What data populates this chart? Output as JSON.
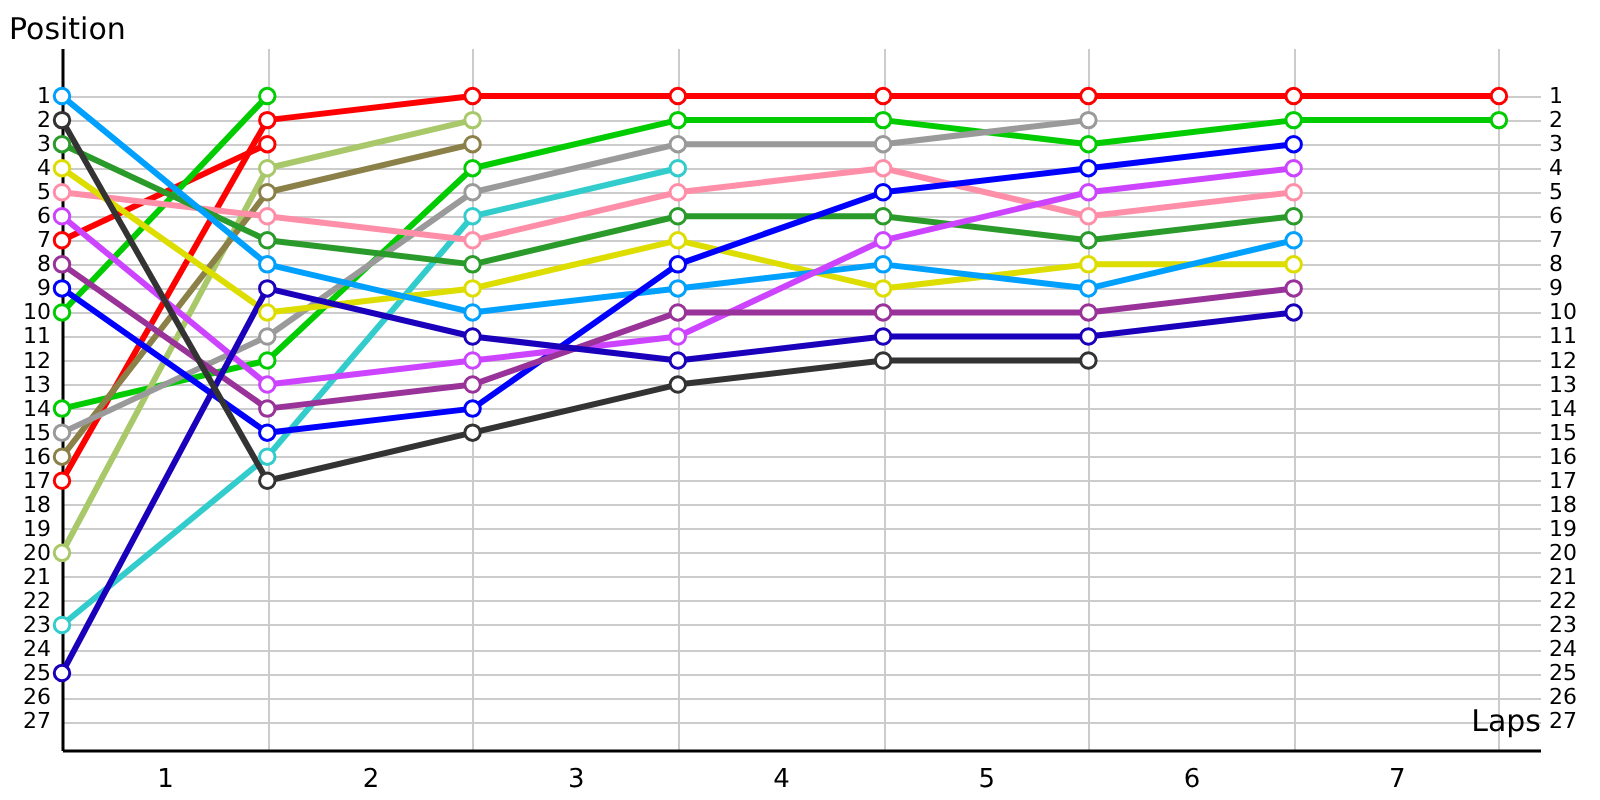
{
  "chart_data": {
    "type": "line",
    "xlabel": "Laps",
    "ylabel": "Position",
    "x": [
      0,
      1,
      2,
      3,
      4,
      5,
      6,
      7
    ],
    "series": [
      {
        "color": "#ff0000",
        "values": [
          17,
          2,
          1,
          1,
          1,
          1,
          1,
          1
        ]
      },
      {
        "color": "#00cc00",
        "values": [
          14,
          12,
          4,
          2,
          2,
          3,
          2,
          2
        ]
      },
      {
        "color": "#ff0000",
        "values": [
          7,
          3,
          null,
          null,
          null,
          null,
          null,
          null
        ]
      },
      {
        "color": "#00cc00",
        "values": [
          10,
          1,
          null,
          null,
          null,
          null,
          null,
          null
        ]
      },
      {
        "color": "#a8c86a",
        "values": [
          20,
          4,
          2,
          null,
          null,
          null,
          null,
          null
        ]
      },
      {
        "color": "#8b8048",
        "values": [
          16,
          5,
          3,
          null,
          null,
          null,
          null,
          null
        ]
      },
      {
        "color": "#9a9a9a",
        "values": [
          15,
          11,
          5,
          3,
          3,
          2,
          null,
          null
        ]
      },
      {
        "color": "#33cccc",
        "values": [
          23,
          16,
          6,
          4,
          null,
          null,
          null,
          null
        ]
      },
      {
        "color": "#ff8fa8",
        "values": [
          5,
          6,
          7,
          5,
          4,
          6,
          5,
          null
        ]
      },
      {
        "color": "#2a9a2a",
        "values": [
          3,
          7,
          8,
          6,
          6,
          7,
          6,
          null
        ]
      },
      {
        "color": "#dddd00",
        "values": [
          4,
          10,
          9,
          7,
          9,
          8,
          8,
          null
        ]
      },
      {
        "color": "#00a0ff",
        "values": [
          1,
          8,
          10,
          9,
          8,
          9,
          7,
          null
        ]
      },
      {
        "color": "#0000ff",
        "values": [
          9,
          15,
          14,
          8,
          5,
          4,
          3,
          null
        ]
      },
      {
        "color": "#cc44ff",
        "values": [
          6,
          13,
          12,
          11,
          7,
          5,
          4,
          null
        ]
      },
      {
        "color": "#993399",
        "values": [
          8,
          14,
          13,
          10,
          10,
          10,
          9,
          null
        ]
      },
      {
        "color": "#1a00bb",
        "values": [
          25,
          9,
          11,
          12,
          11,
          11,
          10,
          null
        ]
      },
      {
        "color": "#333333",
        "values": [
          2,
          17,
          15,
          13,
          12,
          12,
          null,
          null
        ]
      }
    ],
    "xlim": [
      0,
      7.2
    ],
    "xticks": [
      {
        "value": 0.5,
        "label": "1"
      },
      {
        "value": 1,
        "label": null
      },
      {
        "value": 1.5,
        "label": "2"
      },
      {
        "value": 2,
        "label": null
      },
      {
        "value": 2.5,
        "label": "3"
      },
      {
        "value": 3,
        "label": null
      },
      {
        "value": 3.5,
        "label": "4"
      },
      {
        "value": 4,
        "label": null
      },
      {
        "value": 4.5,
        "label": "5"
      },
      {
        "value": 5,
        "label": null
      },
      {
        "value": 5.5,
        "label": "6"
      },
      {
        "value": 6,
        "label": null
      },
      {
        "value": 6.5,
        "label": "7"
      },
      {
        "value": 7,
        "label": null
      }
    ],
    "ylim": [
      28.2,
      -1
    ],
    "yticks": [
      1,
      2,
      3,
      4,
      5,
      6,
      7,
      8,
      9,
      10,
      11,
      12,
      13,
      14,
      15,
      16,
      17,
      18,
      19,
      20,
      21,
      22,
      23,
      24,
      25,
      26,
      27
    ],
    "y2lim": [
      28.2,
      -1
    ],
    "y2ticks": [
      1,
      2,
      3,
      4,
      5,
      6,
      7,
      8,
      9,
      10,
      11,
      12,
      13,
      14,
      15,
      16,
      17,
      18,
      19,
      20,
      21,
      22,
      23,
      24,
      25,
      26,
      27
    ],
    "grid": true,
    "marker": "circle",
    "line_style": "solid"
  }
}
